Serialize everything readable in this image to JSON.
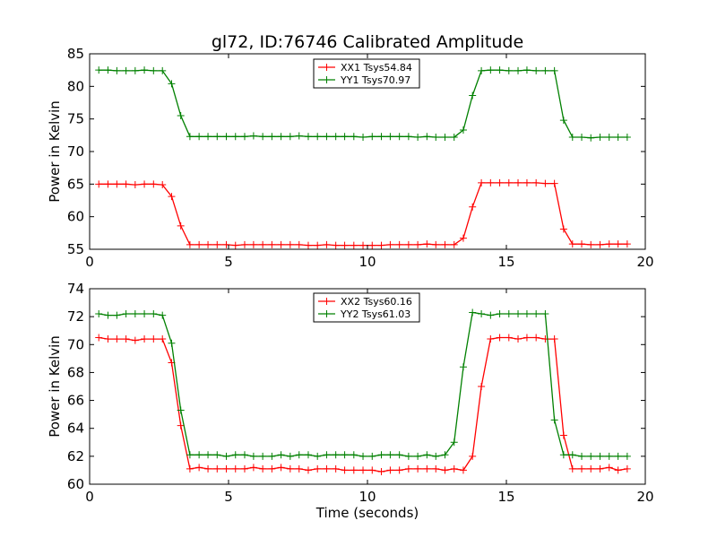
{
  "chart_data": [
    {
      "type": "line",
      "title": "gl72, ID:76746 Calibrated Amplitude",
      "xlabel": "",
      "ylabel": "Power in Kelvin",
      "xlim": [
        0,
        20
      ],
      "ylim": [
        55,
        85
      ],
      "xticks": [
        0,
        5,
        10,
        15,
        20
      ],
      "yticks": [
        55,
        60,
        65,
        70,
        75,
        80,
        85
      ],
      "grid": false,
      "legend": "top-center",
      "x": [
        0.33,
        0.66,
        0.98,
        1.31,
        1.64,
        1.97,
        2.3,
        2.62,
        2.95,
        3.28,
        3.61,
        3.94,
        4.26,
        4.59,
        4.92,
        5.25,
        5.58,
        5.9,
        6.23,
        6.56,
        6.89,
        7.22,
        7.54,
        7.87,
        8.2,
        8.53,
        8.86,
        9.18,
        9.51,
        9.84,
        10.17,
        10.5,
        10.82,
        11.15,
        11.48,
        11.81,
        12.14,
        12.46,
        12.79,
        13.12,
        13.45,
        13.78,
        14.1,
        14.43,
        14.76,
        15.09,
        15.42,
        15.74,
        16.07,
        16.4,
        16.73,
        17.06,
        17.38,
        17.71,
        18.04,
        18.37,
        18.7,
        19.02,
        19.35
      ],
      "series": [
        {
          "name": "XX1 Tsys54.84",
          "color": "#ff0000",
          "values": [
            65.0,
            65.0,
            65.0,
            65.0,
            64.9,
            65.0,
            65.0,
            64.9,
            63.1,
            58.6,
            55.7,
            55.7,
            55.7,
            55.7,
            55.7,
            55.6,
            55.7,
            55.7,
            55.7,
            55.7,
            55.7,
            55.7,
            55.7,
            55.6,
            55.6,
            55.7,
            55.6,
            55.6,
            55.6,
            55.6,
            55.6,
            55.6,
            55.7,
            55.7,
            55.7,
            55.7,
            55.8,
            55.7,
            55.7,
            55.7,
            56.7,
            61.5,
            65.2,
            65.2,
            65.2,
            65.2,
            65.2,
            65.2,
            65.2,
            65.1,
            65.1,
            58.1,
            55.8,
            55.8,
            55.7,
            55.7,
            55.8,
            55.8,
            55.8
          ]
        },
        {
          "name": "YY1 Tsys70.97",
          "color": "#008000",
          "values": [
            82.5,
            82.5,
            82.4,
            82.4,
            82.4,
            82.5,
            82.4,
            82.4,
            80.4,
            75.5,
            72.3,
            72.3,
            72.3,
            72.3,
            72.3,
            72.3,
            72.3,
            72.4,
            72.3,
            72.3,
            72.3,
            72.3,
            72.4,
            72.3,
            72.3,
            72.3,
            72.3,
            72.3,
            72.3,
            72.2,
            72.3,
            72.3,
            72.3,
            72.3,
            72.3,
            72.2,
            72.3,
            72.2,
            72.2,
            72.2,
            73.3,
            78.6,
            82.4,
            82.5,
            82.5,
            82.4,
            82.4,
            82.5,
            82.4,
            82.4,
            82.4,
            74.8,
            72.2,
            72.2,
            72.1,
            72.2,
            72.2,
            72.2,
            72.2
          ]
        }
      ]
    },
    {
      "type": "line",
      "title": "",
      "xlabel": "Time (seconds)",
      "ylabel": "Power in Kelvin",
      "xlim": [
        0,
        20
      ],
      "ylim": [
        60,
        74
      ],
      "xticks": [
        0,
        5,
        10,
        15,
        20
      ],
      "yticks": [
        60,
        62,
        64,
        66,
        68,
        70,
        72,
        74
      ],
      "grid": false,
      "legend": "top-center",
      "x": [
        0.33,
        0.66,
        0.98,
        1.31,
        1.64,
        1.97,
        2.3,
        2.62,
        2.95,
        3.28,
        3.61,
        3.94,
        4.26,
        4.59,
        4.92,
        5.25,
        5.58,
        5.9,
        6.23,
        6.56,
        6.89,
        7.22,
        7.54,
        7.87,
        8.2,
        8.53,
        8.86,
        9.18,
        9.51,
        9.84,
        10.17,
        10.5,
        10.82,
        11.15,
        11.48,
        11.81,
        12.14,
        12.46,
        12.79,
        13.12,
        13.45,
        13.78,
        14.1,
        14.43,
        14.76,
        15.09,
        15.42,
        15.74,
        16.07,
        16.4,
        16.73,
        17.06,
        17.38,
        17.71,
        18.04,
        18.37,
        18.7,
        19.02,
        19.35
      ],
      "series": [
        {
          "name": "XX2 Tsys60.16",
          "color": "#ff0000",
          "values": [
            70.5,
            70.4,
            70.4,
            70.4,
            70.3,
            70.4,
            70.4,
            70.4,
            68.7,
            64.2,
            61.1,
            61.2,
            61.1,
            61.1,
            61.1,
            61.1,
            61.1,
            61.2,
            61.1,
            61.1,
            61.2,
            61.1,
            61.1,
            61.0,
            61.1,
            61.1,
            61.1,
            61.0,
            61.0,
            61.0,
            61.0,
            60.9,
            61.0,
            61.0,
            61.1,
            61.1,
            61.1,
            61.1,
            61.0,
            61.1,
            61.0,
            62.0,
            67.0,
            70.4,
            70.5,
            70.5,
            70.4,
            70.5,
            70.5,
            70.4,
            70.4,
            63.5,
            61.1,
            61.1,
            61.1,
            61.1,
            61.2,
            61.0,
            61.1
          ]
        },
        {
          "name": "YY2 Tsys61.03",
          "color": "#008000",
          "values": [
            72.2,
            72.1,
            72.1,
            72.2,
            72.2,
            72.2,
            72.2,
            72.1,
            70.1,
            65.3,
            62.1,
            62.1,
            62.1,
            62.1,
            62.0,
            62.1,
            62.1,
            62.0,
            62.0,
            62.0,
            62.1,
            62.0,
            62.1,
            62.1,
            62.0,
            62.1,
            62.1,
            62.1,
            62.1,
            62.0,
            62.0,
            62.1,
            62.1,
            62.1,
            62.0,
            62.0,
            62.1,
            62.0,
            62.1,
            63.0,
            68.4,
            72.3,
            72.2,
            72.1,
            72.2,
            72.2,
            72.2,
            72.2,
            72.2,
            72.2,
            64.6,
            62.1,
            62.1,
            62.0,
            62.0,
            62.0,
            62.0,
            62.0,
            62.0
          ]
        }
      ]
    }
  ]
}
